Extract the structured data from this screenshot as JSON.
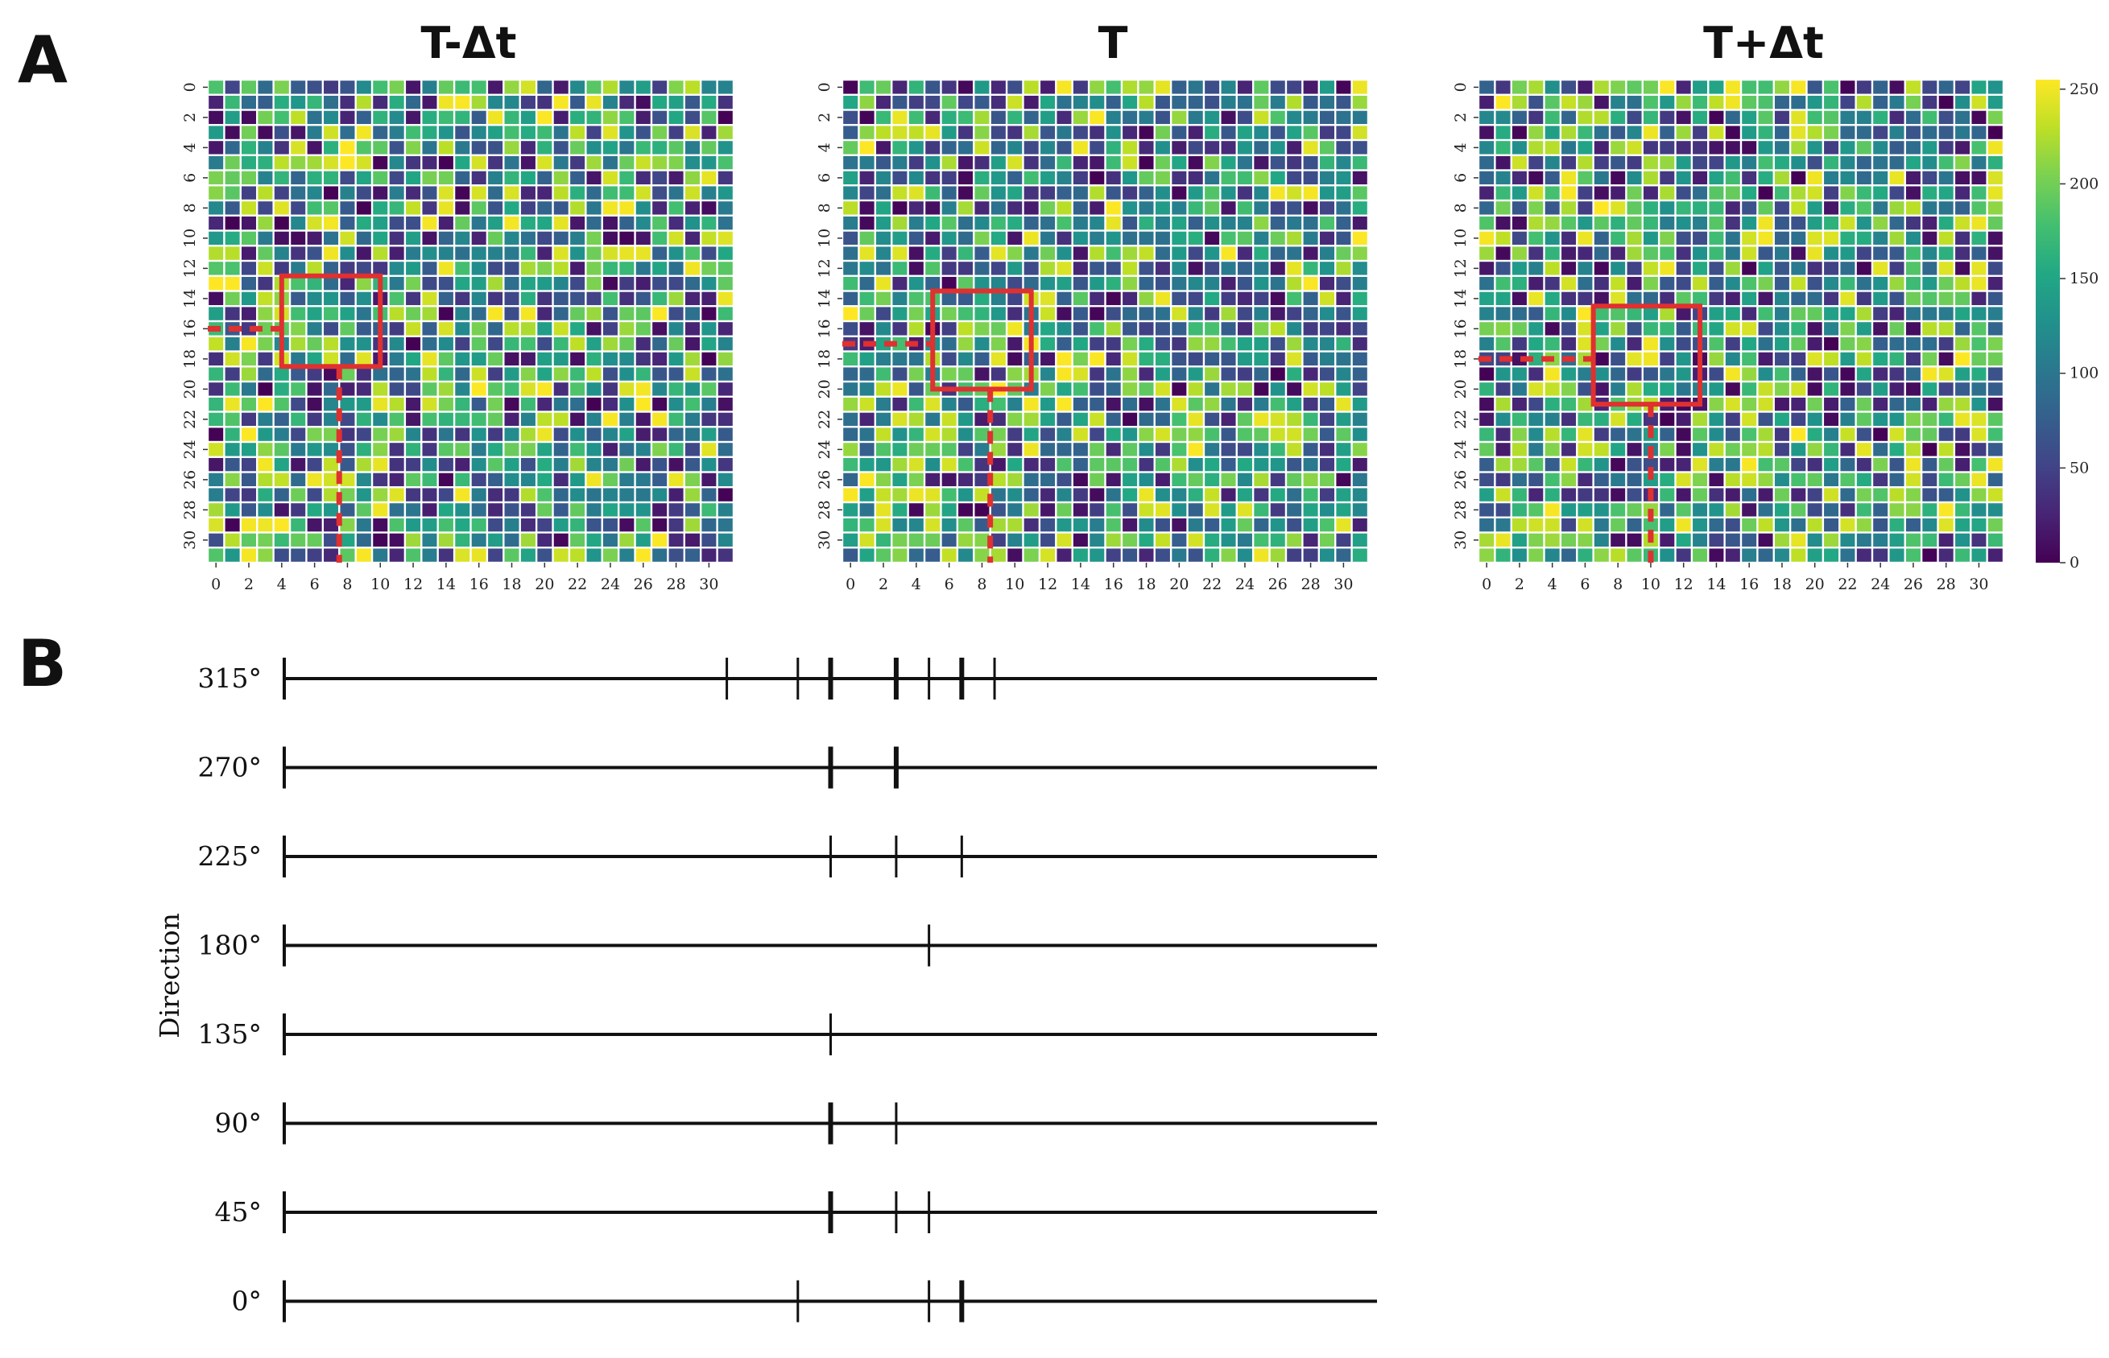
{
  "panel_a_label": "A",
  "panel_b_label": "B",
  "chart_data": [
    {
      "type": "heatmap",
      "title": "T-Δt",
      "rows": 32,
      "cols": 32,
      "xticks": [
        "0",
        "2",
        "4",
        "6",
        "8",
        "10",
        "12",
        "14",
        "16",
        "18",
        "20",
        "22",
        "24",
        "26",
        "28",
        "30"
      ],
      "yticks": [
        "0",
        "2",
        "4",
        "6",
        "8",
        "10",
        "12",
        "14",
        "16",
        "18",
        "20",
        "22",
        "24",
        "26",
        "28",
        "30"
      ],
      "cell_values": "random pixel intensities 0-255",
      "highlight_box": {
        "x_range": [
          4.5,
          10.5
        ],
        "y_range": [
          13,
          19
        ],
        "color": "#e03030"
      },
      "guide_marker": {
        "x": 7.5,
        "y": 16
      }
    },
    {
      "type": "heatmap",
      "title": "T",
      "rows": 32,
      "cols": 32,
      "xticks": [
        "0",
        "2",
        "4",
        "6",
        "8",
        "10",
        "12",
        "14",
        "16",
        "18",
        "20",
        "22",
        "24",
        "26",
        "28",
        "30"
      ],
      "yticks": [
        "0",
        "2",
        "4",
        "6",
        "8",
        "10",
        "12",
        "14",
        "16",
        "18",
        "20",
        "22",
        "24",
        "26",
        "28",
        "30"
      ],
      "highlight_box": {
        "x_range": [
          5.5,
          11.5
        ],
        "y_range": [
          14,
          20.5
        ],
        "color": "#e03030"
      },
      "guide_marker": {
        "x": 8.5,
        "y": 17
      }
    },
    {
      "type": "heatmap",
      "title": "T+Δt",
      "rows": 32,
      "cols": 32,
      "xticks": [
        "0",
        "2",
        "4",
        "6",
        "8",
        "10",
        "12",
        "14",
        "16",
        "18",
        "20",
        "22",
        "24",
        "26",
        "28",
        "30"
      ],
      "yticks": [
        "0",
        "2",
        "4",
        "6",
        "8",
        "10",
        "12",
        "14",
        "16",
        "18",
        "20",
        "22",
        "24",
        "26",
        "28",
        "30"
      ],
      "highlight_box": {
        "x_range": [
          7,
          13.5
        ],
        "y_range": [
          15,
          21.5
        ],
        "color": "#e03030"
      },
      "guide_marker": {
        "x": 10,
        "y": 18
      }
    },
    {
      "type": "colorbar",
      "colormap": "viridis",
      "range": [
        0,
        255
      ],
      "ticks": [
        "0",
        "50",
        "100",
        "150",
        "200",
        "250"
      ],
      "tick_values": [
        0,
        50,
        100,
        150,
        200,
        250
      ]
    },
    {
      "type": "event-raster",
      "ylabel": "Direction",
      "x_range": [
        0,
        1000
      ],
      "rows": [
        {
          "label": "315°",
          "events": [
            405,
            470,
            500,
            560,
            590,
            620,
            650
          ],
          "bold": [
            500,
            560,
            620
          ]
        },
        {
          "label": "270°",
          "events": [
            500,
            560
          ],
          "bold": [
            500,
            560
          ]
        },
        {
          "label": "225°",
          "events": [
            500,
            560,
            620
          ],
          "bold": []
        },
        {
          "label": "180°",
          "events": [
            590
          ],
          "bold": []
        },
        {
          "label": "135°",
          "events": [
            500
          ],
          "bold": []
        },
        {
          "label": "90°",
          "events": [
            500,
            560
          ],
          "bold": [
            500
          ]
        },
        {
          "label": "45°",
          "events": [
            500,
            560,
            590
          ],
          "bold": [
            500
          ]
        },
        {
          "label": "0°",
          "events": [
            470,
            590,
            620
          ],
          "bold": [
            620
          ]
        }
      ]
    }
  ]
}
